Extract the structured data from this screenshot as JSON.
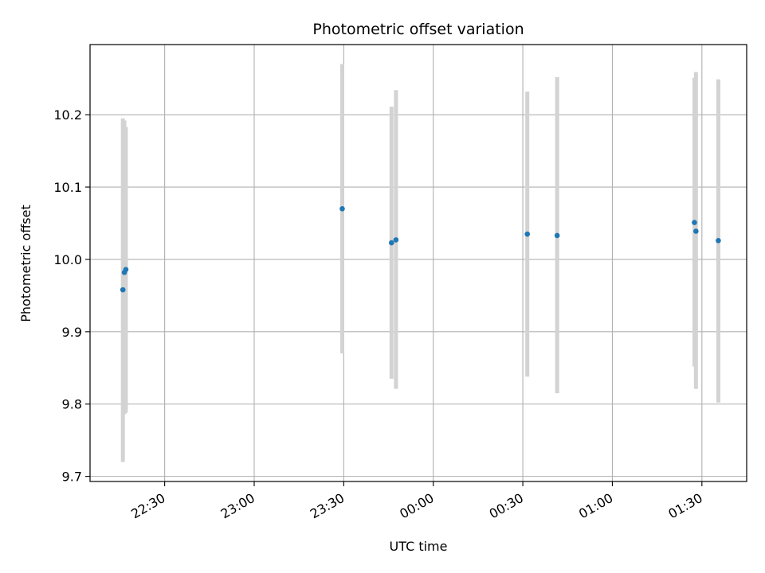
{
  "chart_data": {
    "type": "scatter",
    "title": "Photometric offset variation",
    "xlabel": "UTC time",
    "ylabel": "Photometric offset",
    "x_axis_kind": "time",
    "x_ticks": [
      "22:30",
      "23:00",
      "23:30",
      "00:00",
      "00:30",
      "01:00",
      "01:30"
    ],
    "x_tick_times": [
      "22:30",
      "23:00",
      "23:30",
      "24:00",
      "24:30",
      "25:00",
      "25:30"
    ],
    "xlim": [
      "22:05",
      "25:45"
    ],
    "y_ticks": [
      "9.7",
      "9.8",
      "9.9",
      "10.0",
      "10.1",
      "10.2"
    ],
    "ylim": [
      9.693,
      10.297
    ],
    "grid": true,
    "colors": {
      "point": "#1f77b4",
      "errorbar": "#d3d3d3",
      "grid": "#b0b0b0"
    },
    "points": [
      {
        "time": "22:16:00",
        "y": 9.958,
        "err_low": 0.238,
        "err_high": 0.237
      },
      {
        "time": "22:16:30",
        "y": 9.982,
        "err_low": 0.196,
        "err_high": 0.21
      },
      {
        "time": "22:17:00",
        "y": 9.986,
        "err_low": 0.198,
        "err_high": 0.197
      },
      {
        "time": "23:29:30",
        "y": 10.07,
        "err_low": 0.2,
        "err_high": 0.2
      },
      {
        "time": "23:46:00",
        "y": 10.023,
        "err_low": 0.188,
        "err_high": 0.188
      },
      {
        "time": "23:47:30",
        "y": 10.027,
        "err_low": 0.206,
        "err_high": 0.207
      },
      {
        "time": "24:31:30",
        "y": 10.035,
        "err_low": 0.197,
        "err_high": 0.197
      },
      {
        "time": "24:41:30",
        "y": 10.033,
        "err_low": 0.218,
        "err_high": 0.219
      },
      {
        "time": "25:27:30",
        "y": 10.051,
        "err_low": 0.199,
        "err_high": 0.2
      },
      {
        "time": "25:28:00",
        "y": 10.039,
        "err_low": 0.218,
        "err_high": 0.22
      },
      {
        "time": "25:35:30",
        "y": 10.026,
        "err_low": 0.224,
        "err_high": 0.223
      }
    ]
  }
}
